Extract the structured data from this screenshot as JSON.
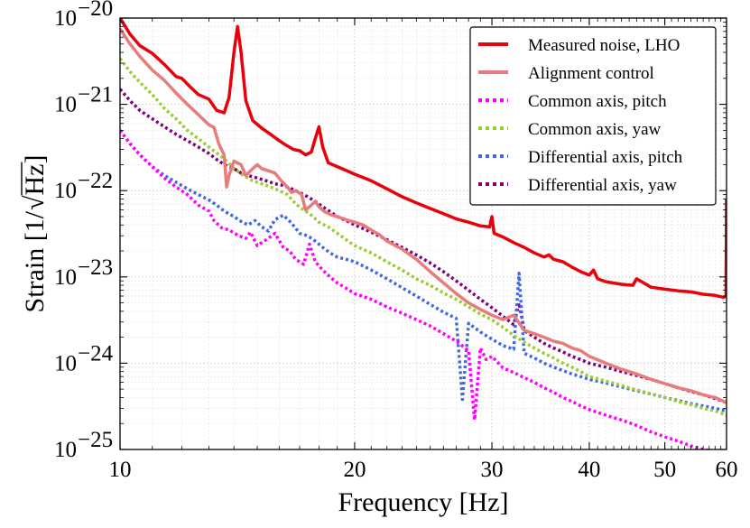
{
  "chart_data": {
    "type": "line",
    "xscale": "log",
    "yscale": "log",
    "xlim": [
      10,
      60
    ],
    "ylim": [
      1e-25,
      1e-20
    ],
    "xlabel": "Frequency [Hz]",
    "ylabel": "Strain [1/√Hz]",
    "ylabel_parts": {
      "prefix": "Strain [1/",
      "radicand": "Hz",
      "suffix": "]"
    },
    "grid": true,
    "legend_position": "top-right",
    "xticks": [
      {
        "value": 10,
        "label": "10"
      },
      {
        "value": 20,
        "label": "20"
      },
      {
        "value": 30,
        "label": "30"
      },
      {
        "value": 40,
        "label": "40"
      },
      {
        "value": 50,
        "label": "50"
      },
      {
        "value": 60,
        "label": "60"
      }
    ],
    "yticks": [
      {
        "value": 1e-20,
        "base": "10",
        "exp": "−20"
      },
      {
        "value": 1e-21,
        "base": "10",
        "exp": "−21"
      },
      {
        "value": 1e-22,
        "base": "10",
        "exp": "−22"
      },
      {
        "value": 1e-23,
        "base": "10",
        "exp": "−23"
      },
      {
        "value": 1e-24,
        "base": "10",
        "exp": "−24"
      },
      {
        "value": 1e-25,
        "base": "10",
        "exp": "−25"
      }
    ],
    "series": [
      {
        "name": "Measured noise, LHO",
        "color": "#e8000b",
        "style": "solid",
        "width": 3.5,
        "x": [
          10,
          10.3,
          10.6,
          11,
          11.4,
          11.8,
          12,
          12.3,
          12.6,
          13,
          13.3,
          13.6,
          13.8,
          14,
          14.15,
          14.3,
          14.5,
          14.8,
          15.2,
          15.6,
          16,
          16.3,
          16.7,
          17,
          17.3,
          17.6,
          17.8,
          18,
          18.2,
          18.5,
          19,
          20,
          21,
          22,
          23,
          24,
          25,
          26,
          27,
          28,
          29,
          29.8,
          30,
          30.2,
          31,
          32,
          33,
          34,
          35,
          35.5,
          36,
          37,
          38,
          39,
          40,
          40.5,
          41,
          42,
          44,
          45.5,
          46,
          48,
          50,
          52,
          54,
          56,
          58,
          59.5,
          59.9,
          60
        ],
        "y": [
          1e-20,
          6.5e-21,
          4.8e-21,
          3.9e-21,
          2.9e-21,
          2.1e-21,
          2e-21,
          1.6e-21,
          1.3e-21,
          1.15e-21,
          8.5e-22,
          8e-22,
          1.2e-21,
          4e-21,
          8e-21,
          4e-21,
          1.1e-21,
          6.5e-22,
          5.3e-22,
          4.5e-22,
          3.8e-22,
          3.4e-22,
          3e-22,
          2.9e-22,
          2.6e-22,
          2.8e-22,
          4e-22,
          5.5e-22,
          3.2e-22,
          2.1e-22,
          1.9e-22,
          1.55e-22,
          1.3e-22,
          1.05e-22,
          8.5e-23,
          7.2e-23,
          6.2e-23,
          5.4e-23,
          4.7e-23,
          4.3e-23,
          3.9e-23,
          3.8e-23,
          5e-23,
          3.2e-23,
          2.9e-23,
          2.5e-23,
          2.2e-23,
          1.9e-23,
          1.7e-23,
          1.8e-23,
          1.6e-23,
          1.5e-23,
          1.3e-23,
          1.15e-23,
          1.05e-23,
          1.2e-23,
          9.5e-24,
          8.8e-24,
          8.2e-24,
          8e-24,
          9.5e-24,
          7.6e-24,
          7.2e-24,
          6.9e-24,
          6.7e-24,
          6.3e-24,
          6.1e-24,
          5.8e-24,
          6e-24,
          8e-23
        ]
      },
      {
        "name": "Alignment control",
        "color": "#e77c7c",
        "style": "solid",
        "width": 3.5,
        "x": [
          10,
          10.3,
          10.6,
          11,
          11.4,
          11.8,
          12.2,
          12.6,
          13,
          13.2,
          13.4,
          13.6,
          13.7,
          13.8,
          14,
          14.3,
          14.5,
          14.8,
          15,
          15.2,
          15.5,
          15.8,
          16.1,
          16.4,
          16.6,
          16.8,
          17.1,
          17.3,
          17.5,
          17.8,
          18,
          18.3,
          18.7,
          19,
          19.5,
          20,
          20.5,
          21,
          21.5,
          22,
          23,
          24,
          25,
          26,
          27,
          28,
          29,
          30,
          31,
          32,
          33,
          34,
          35,
          36,
          37,
          38,
          39,
          40,
          42,
          44,
          46,
          48,
          50,
          52,
          54,
          56,
          58,
          60
        ],
        "y": [
          7.5e-21,
          5e-21,
          3.6e-21,
          2.5e-21,
          1.9e-21,
          1.35e-21,
          1e-21,
          7.6e-22,
          5.8e-22,
          5.4e-22,
          3.4e-22,
          2.6e-22,
          1.1e-22,
          1.5e-22,
          2.2e-22,
          2e-22,
          1.5e-22,
          1.8e-22,
          2e-22,
          1.8e-22,
          1.7e-22,
          1.6e-22,
          1.3e-22,
          1.1e-22,
          9.5e-23,
          1e-22,
          9e-23,
          6e-23,
          6.5e-23,
          7.5e-23,
          6.5e-23,
          5.7e-23,
          5.2e-23,
          5e-23,
          4.6e-23,
          4.3e-23,
          4e-23,
          3.5e-23,
          3.1e-23,
          2.6e-23,
          2.1e-23,
          1.6e-23,
          1.15e-23,
          8.5e-24,
          6.4e-24,
          5e-24,
          4.2e-24,
          3.6e-24,
          3.2e-24,
          3.6e-24,
          2.4e-24,
          2.2e-24,
          2e-24,
          1.8e-24,
          1.7e-24,
          1.5e-24,
          1.4e-24,
          1.2e-24,
          1e-24,
          8.5e-25,
          7.5e-25,
          6.5e-25,
          5.8e-25,
          5.2e-25,
          4.8e-25,
          4.3e-25,
          4e-25,
          3.5e-25
        ]
      },
      {
        "name": "Common axis, pitch",
        "color": "#ff00ff",
        "style": "dotted",
        "width": 3.5,
        "x": [
          10,
          10.3,
          10.6,
          11,
          11.4,
          11.8,
          12.2,
          12.6,
          13,
          13.2,
          13.5,
          13.8,
          14.2,
          14.5,
          14.7,
          15,
          15.2,
          15.5,
          15.8,
          16.2,
          16.5,
          16.8,
          17.2,
          17.5,
          17.8,
          18.2,
          18.6,
          19,
          19.5,
          20,
          21,
          22,
          23,
          24,
          25,
          26,
          27,
          28,
          28.5,
          29,
          29.5,
          30,
          31,
          32,
          33,
          34,
          35,
          36,
          37,
          38,
          39,
          40,
          42,
          44,
          46,
          48,
          50,
          52,
          54,
          56,
          58,
          60
        ],
        "y": [
          5e-22,
          3.5e-22,
          2.6e-22,
          1.9e-22,
          1.4e-22,
          1.1e-22,
          9e-23,
          6.8e-23,
          5.8e-23,
          4.5e-23,
          3.7e-23,
          3.5e-23,
          3e-23,
          2.8e-23,
          3.3e-23,
          2.3e-23,
          2.5e-23,
          2.8e-23,
          3.2e-23,
          2.2e-23,
          2e-23,
          1.6e-23,
          1.4e-23,
          2.4e-23,
          1.5e-23,
          1.2e-23,
          1e-23,
          8.5e-24,
          7.4e-24,
          6.4e-24,
          5.5e-24,
          4.5e-24,
          3.8e-24,
          3.2e-24,
          2.7e-24,
          2.2e-24,
          1.8e-24,
          1.4e-24,
          2.2e-25,
          1.5e-24,
          1.1e-24,
          1.2e-24,
          8.8e-25,
          7.8e-25,
          6.8e-25,
          6e-25,
          5.2e-25,
          4.6e-25,
          4e-25,
          3.6e-25,
          3.2e-25,
          2.9e-25,
          2.5e-25,
          2.2e-25,
          1.9e-25,
          1.6e-25,
          1.4e-25,
          1.25e-25,
          1.1e-25,
          1e-25,
          9.5e-26,
          9e-26
        ]
      },
      {
        "name": "Common axis, yaw",
        "color": "#9acd32",
        "style": "dotted",
        "width": 3.5,
        "x": [
          10,
          10.3,
          10.6,
          11,
          11.4,
          11.8,
          12.2,
          12.6,
          13,
          13.4,
          13.7,
          14,
          14.4,
          14.8,
          15.2,
          15.6,
          16,
          16.4,
          16.8,
          17.2,
          17.6,
          18,
          18.5,
          19,
          19.5,
          20,
          21,
          22,
          23,
          24,
          25,
          26,
          27,
          28,
          29,
          30,
          31,
          32,
          33,
          34,
          35,
          36,
          37,
          38,
          39,
          40,
          42,
          44,
          46,
          48,
          50,
          52,
          54,
          56,
          58,
          60
        ],
        "y": [
          3.4e-21,
          2.4e-21,
          1.8e-21,
          1.3e-21,
          9e-22,
          6.8e-22,
          5e-22,
          4e-22,
          3.2e-22,
          2.6e-22,
          2.2e-22,
          1.8e-22,
          1.5e-22,
          1.3e-22,
          1.2e-22,
          1.1e-22,
          1e-22,
          9e-23,
          7e-23,
          6e-23,
          5.2e-23,
          4.3e-23,
          3.8e-23,
          3.2e-23,
          2.7e-23,
          2.3e-23,
          1.9e-23,
          1.5e-23,
          1.2e-23,
          9.5e-24,
          8e-24,
          6.5e-24,
          5.5e-24,
          4.5e-24,
          3.7e-24,
          3.2e-24,
          2.6e-24,
          2.1e-24,
          1.75e-24,
          1.5e-24,
          1.3e-24,
          1.15e-24,
          1e-24,
          9e-25,
          8e-25,
          7e-25,
          6.2e-25,
          5.5e-25,
          4.9e-25,
          4.4e-25,
          4e-25,
          3.6e-25,
          3.3e-25,
          3e-25,
          2.8e-25,
          2.5e-25
        ]
      },
      {
        "name": "Differential axis, pitch",
        "color": "#4169e1",
        "style": "dotted",
        "width": 3.5,
        "x": [
          10,
          10.3,
          10.6,
          11,
          11.4,
          11.8,
          12.2,
          12.6,
          13,
          13.3,
          13.6,
          14,
          14.3,
          14.6,
          14.9,
          15.2,
          15.5,
          15.8,
          16.2,
          16.6,
          17,
          17.4,
          17.8,
          18.2,
          18.6,
          19,
          19.5,
          20,
          21,
          22,
          23,
          24,
          25,
          26,
          27,
          27.5,
          28,
          29,
          30,
          31,
          32,
          32.5,
          33,
          34,
          35,
          36,
          37,
          38,
          39,
          40,
          42,
          44,
          46,
          48,
          50,
          52,
          54,
          56,
          58,
          60
        ],
        "y": [
          5e-22,
          3.5e-22,
          2.6e-22,
          1.9e-22,
          1.5e-22,
          1.25e-22,
          1.05e-22,
          9e-23,
          7.8e-23,
          6.8e-23,
          5.8e-23,
          5e-23,
          4.4e-23,
          4e-23,
          4.5e-23,
          3.8e-23,
          3.4e-23,
          4.6e-23,
          5.2e-23,
          4.2e-23,
          3.2e-23,
          3e-23,
          2.6e-23,
          2.2e-23,
          1.9e-23,
          1.7e-23,
          1.6e-23,
          1.5e-23,
          1.2e-23,
          9.5e-24,
          7.5e-24,
          6e-24,
          4.8e-24,
          3.9e-24,
          3.3e-24,
          3.8e-25,
          2.9e-24,
          2.3e-24,
          1.9e-24,
          1.6e-24,
          1.45e-24,
          1.1e-23,
          1.3e-24,
          1.15e-24,
          1e-24,
          9e-25,
          8.2e-25,
          7.5e-25,
          7e-25,
          6.5e-25,
          5.9e-25,
          5.3e-25,
          4.8e-25,
          4.4e-25,
          4e-25,
          3.7e-25,
          3.4e-25,
          3.2e-25,
          3e-25,
          2.8e-25
        ]
      },
      {
        "name": "Differential axis, yaw",
        "color": "#800080",
        "style": "dotted",
        "width": 3.5,
        "x": [
          10,
          10.3,
          10.6,
          11,
          11.4,
          11.8,
          12.2,
          12.6,
          13,
          13.3,
          13.6,
          14,
          14.3,
          14.6,
          15,
          15.4,
          15.8,
          16.2,
          16.6,
          17,
          17.4,
          17.8,
          18.2,
          18.6,
          19,
          19.5,
          20,
          21,
          22,
          23,
          24,
          25,
          26,
          27,
          28,
          29,
          30,
          31,
          32,
          32.5,
          33,
          34,
          35,
          36,
          37,
          38,
          39,
          40,
          42,
          44,
          46,
          48,
          50,
          52,
          54,
          56,
          58,
          60
        ],
        "y": [
          1.5e-21,
          1.1e-21,
          8.5e-22,
          6.8e-22,
          5.5e-22,
          4.5e-22,
          3.8e-22,
          3.2e-22,
          2.7e-22,
          2.3e-22,
          2e-22,
          1.8e-22,
          1.6e-22,
          1.5e-22,
          1.4e-22,
          1.3e-22,
          1.2e-22,
          1.15e-22,
          1.05e-22,
          9.5e-23,
          8.5e-23,
          7.5e-23,
          6.5e-23,
          5.7e-23,
          5e-23,
          4.5e-23,
          4e-23,
          3.3e-23,
          2.7e-23,
          2.2e-23,
          1.8e-23,
          1.45e-23,
          1.15e-23,
          9e-24,
          7e-24,
          5.5e-24,
          4.4e-24,
          3.5e-24,
          2.8e-24,
          5e-24,
          2.4e-24,
          2e-24,
          1.7e-24,
          1.5e-24,
          1.35e-24,
          1.2e-24,
          1.1e-24,
          1e-24,
          9e-25,
          8e-25,
          7.2e-25,
          6.5e-25,
          5.8e-25,
          5.2e-25,
          4.7e-25,
          4.3e-25,
          3.9e-25,
          3.5e-25
        ]
      }
    ]
  }
}
